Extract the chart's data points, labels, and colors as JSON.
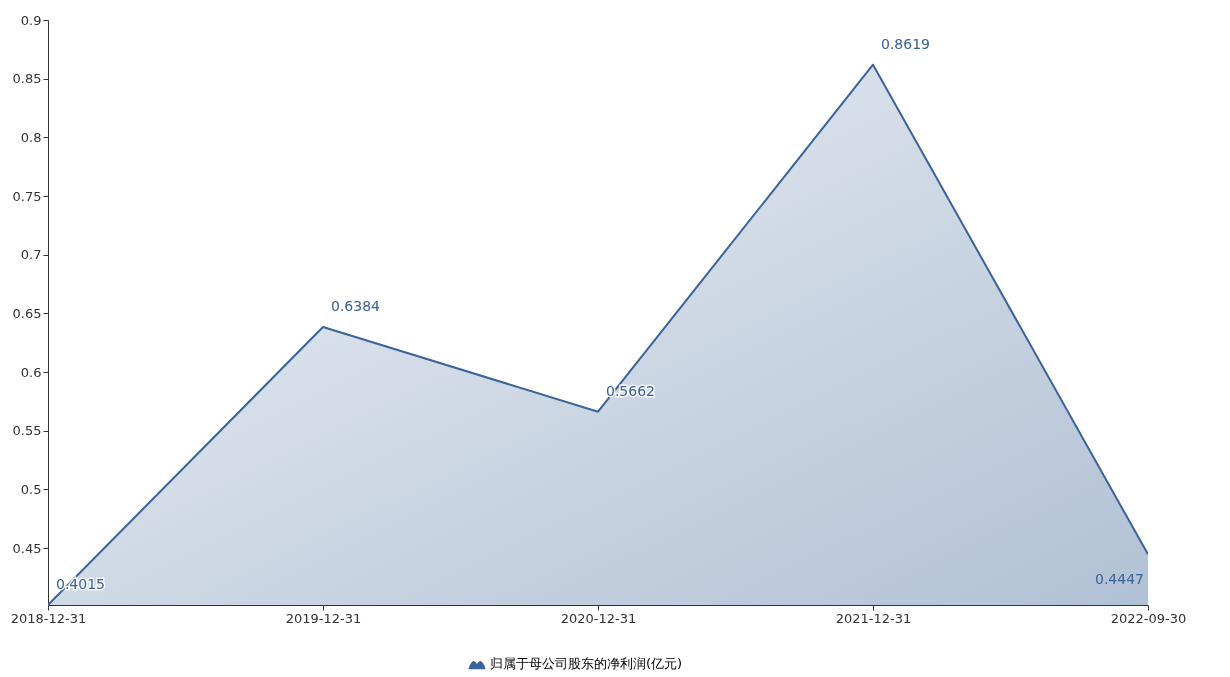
{
  "chart_data": {
    "type": "area",
    "categories": [
      "2018-12-31",
      "2019-12-31",
      "2020-12-31",
      "2021-12-31",
      "2022-09-30"
    ],
    "series": [
      {
        "name": "归属于母公司股东的净利润(亿元)",
        "color": "#3a6399",
        "values": [
          0.4015,
          0.6384,
          0.5662,
          0.8619,
          0.4447
        ]
      }
    ],
    "ylim": [
      0.4015,
      0.9
    ],
    "yticks": [
      0.45,
      0.5,
      0.55,
      0.6,
      0.65,
      0.7,
      0.75,
      0.8,
      0.85,
      0.9
    ],
    "data_labels": true,
    "legend": "bottom",
    "grid": false
  }
}
